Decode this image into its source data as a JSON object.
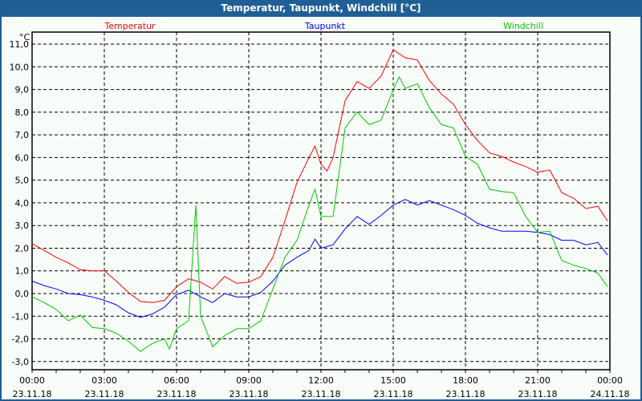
{
  "window": {
    "title": "Temperatur, Taupunkt, Windchill [°C]"
  },
  "chart_data": {
    "type": "line",
    "title": "Temperatur, Taupunkt, Windchill [°C]",
    "ylabel": "°C",
    "ylim": [
      -3.5,
      11.5
    ],
    "xlim_hours": [
      0,
      24
    ],
    "yticks": [
      "11,0",
      "10,0",
      "9,0",
      "8,0",
      "7,0",
      "6,0",
      "5,0",
      "4,0",
      "3,0",
      "2,0",
      "1,0",
      "0,0",
      "-1,0",
      "-2,0",
      "-3,0"
    ],
    "ytick_values": [
      11,
      10,
      9,
      8,
      7,
      6,
      5,
      4,
      3,
      2,
      1,
      0,
      -1,
      -2,
      -3
    ],
    "xticks": [
      {
        "time": "00:00",
        "date": "23.11.18",
        "h": 0
      },
      {
        "time": "03:00",
        "date": "23.11.18",
        "h": 3
      },
      {
        "time": "06:00",
        "date": "23.11.18",
        "h": 6
      },
      {
        "time": "09:00",
        "date": "23.11.18",
        "h": 9
      },
      {
        "time": "12:00",
        "date": "23.11.18",
        "h": 12
      },
      {
        "time": "15:00",
        "date": "23.11.18",
        "h": 15
      },
      {
        "time": "18:00",
        "date": "23.11.18",
        "h": 18
      },
      {
        "time": "21:00",
        "date": "23.11.18",
        "h": 21
      },
      {
        "time": "00:00",
        "date": "24.11.18",
        "h": 24
      }
    ],
    "grid": true,
    "legend_placement": "top",
    "series": [
      {
        "name": "Temperatur",
        "color": "#ff0000",
        "x": [
          0,
          0.5,
          1,
          1.5,
          2,
          2.5,
          3,
          3.5,
          4,
          4.5,
          5,
          5.5,
          6,
          6.5,
          7,
          7.5,
          8,
          8.5,
          9,
          9.5,
          10,
          10.5,
          11,
          11.5,
          11.75,
          12,
          12.25,
          12.5,
          13,
          13.5,
          14,
          14.5,
          15,
          15.5,
          16,
          16.5,
          17,
          17.5,
          18,
          18.5,
          19,
          19.5,
          20,
          20.5,
          21,
          21.5,
          22,
          22.5,
          23,
          23.5,
          23.9
        ],
        "y": [
          2.2,
          1.9,
          1.6,
          1.35,
          1.05,
          1.0,
          1.0,
          0.55,
          0.05,
          -0.35,
          -0.4,
          -0.3,
          0.3,
          0.65,
          0.5,
          0.2,
          0.75,
          0.45,
          0.5,
          0.75,
          1.6,
          3.2,
          4.9,
          6.0,
          6.5,
          5.7,
          5.4,
          6.0,
          8.5,
          9.35,
          9.05,
          9.6,
          10.75,
          10.4,
          10.3,
          9.4,
          8.8,
          8.35,
          7.45,
          6.75,
          6.2,
          6.05,
          5.8,
          5.6,
          5.35,
          5.45,
          4.45,
          4.2,
          3.75,
          3.85,
          3.2
        ]
      },
      {
        "name": "Taupunkt",
        "color": "#0000ff",
        "x": [
          0,
          0.5,
          1,
          1.5,
          2,
          2.5,
          3,
          3.5,
          4,
          4.5,
          5,
          5.5,
          6,
          6.5,
          7,
          7.5,
          8,
          8.5,
          9,
          9.5,
          10,
          10.5,
          11,
          11.5,
          11.75,
          12,
          12.5,
          13,
          13.5,
          14,
          14.5,
          15,
          15.5,
          16,
          16.5,
          17,
          17.5,
          18,
          18.5,
          19,
          19.5,
          20,
          20.5,
          21,
          21.5,
          22,
          22.5,
          23,
          23.5,
          23.9
        ],
        "y": [
          0.55,
          0.35,
          0.2,
          0,
          -0.05,
          -0.15,
          -0.3,
          -0.5,
          -0.85,
          -1.05,
          -0.9,
          -0.6,
          -0.05,
          0.15,
          -0.15,
          -0.4,
          0,
          -0.15,
          -0.15,
          0.05,
          0.55,
          1.25,
          1.6,
          1.9,
          2.4,
          2.0,
          2.15,
          2.85,
          3.4,
          3.05,
          3.45,
          3.9,
          4.15,
          3.9,
          4.1,
          3.9,
          3.7,
          3.45,
          3.1,
          2.9,
          2.75,
          2.75,
          2.75,
          2.7,
          2.6,
          2.35,
          2.35,
          2.15,
          2.25,
          1.7
        ]
      },
      {
        "name": "Windchill",
        "color": "#00cc00",
        "x": [
          0,
          0.5,
          1,
          1.5,
          2,
          2.5,
          3,
          3.5,
          4,
          4.5,
          5,
          5.5,
          5.7,
          6,
          6.5,
          6.8,
          7,
          7.5,
          8,
          8.5,
          9,
          9.5,
          10,
          10.5,
          11,
          11.5,
          11.75,
          12,
          12.5,
          13,
          13.5,
          14,
          14.5,
          15,
          15.25,
          15.5,
          16,
          16.5,
          17,
          17.5,
          18,
          18.5,
          19,
          19.5,
          20,
          20.5,
          21,
          21.5,
          22,
          22.5,
          23,
          23.5,
          23.9
        ],
        "y": [
          -0.15,
          -0.4,
          -0.7,
          -1.2,
          -0.95,
          -1.5,
          -1.55,
          -1.75,
          -2.1,
          -2.55,
          -2.2,
          -2.0,
          -2.45,
          -1.55,
          -1.2,
          3.9,
          -1.0,
          -2.35,
          -1.85,
          -1.55,
          -1.55,
          -1.2,
          0.2,
          1.6,
          2.35,
          3.9,
          4.6,
          3.4,
          3.4,
          7.3,
          8.0,
          7.45,
          7.65,
          9.0,
          9.55,
          9.05,
          9.25,
          8.2,
          7.45,
          7.3,
          6.05,
          5.7,
          4.6,
          4.5,
          4.45,
          3.4,
          2.7,
          2.75,
          1.45,
          1.25,
          1.1,
          0.9,
          0.3
        ]
      }
    ]
  }
}
